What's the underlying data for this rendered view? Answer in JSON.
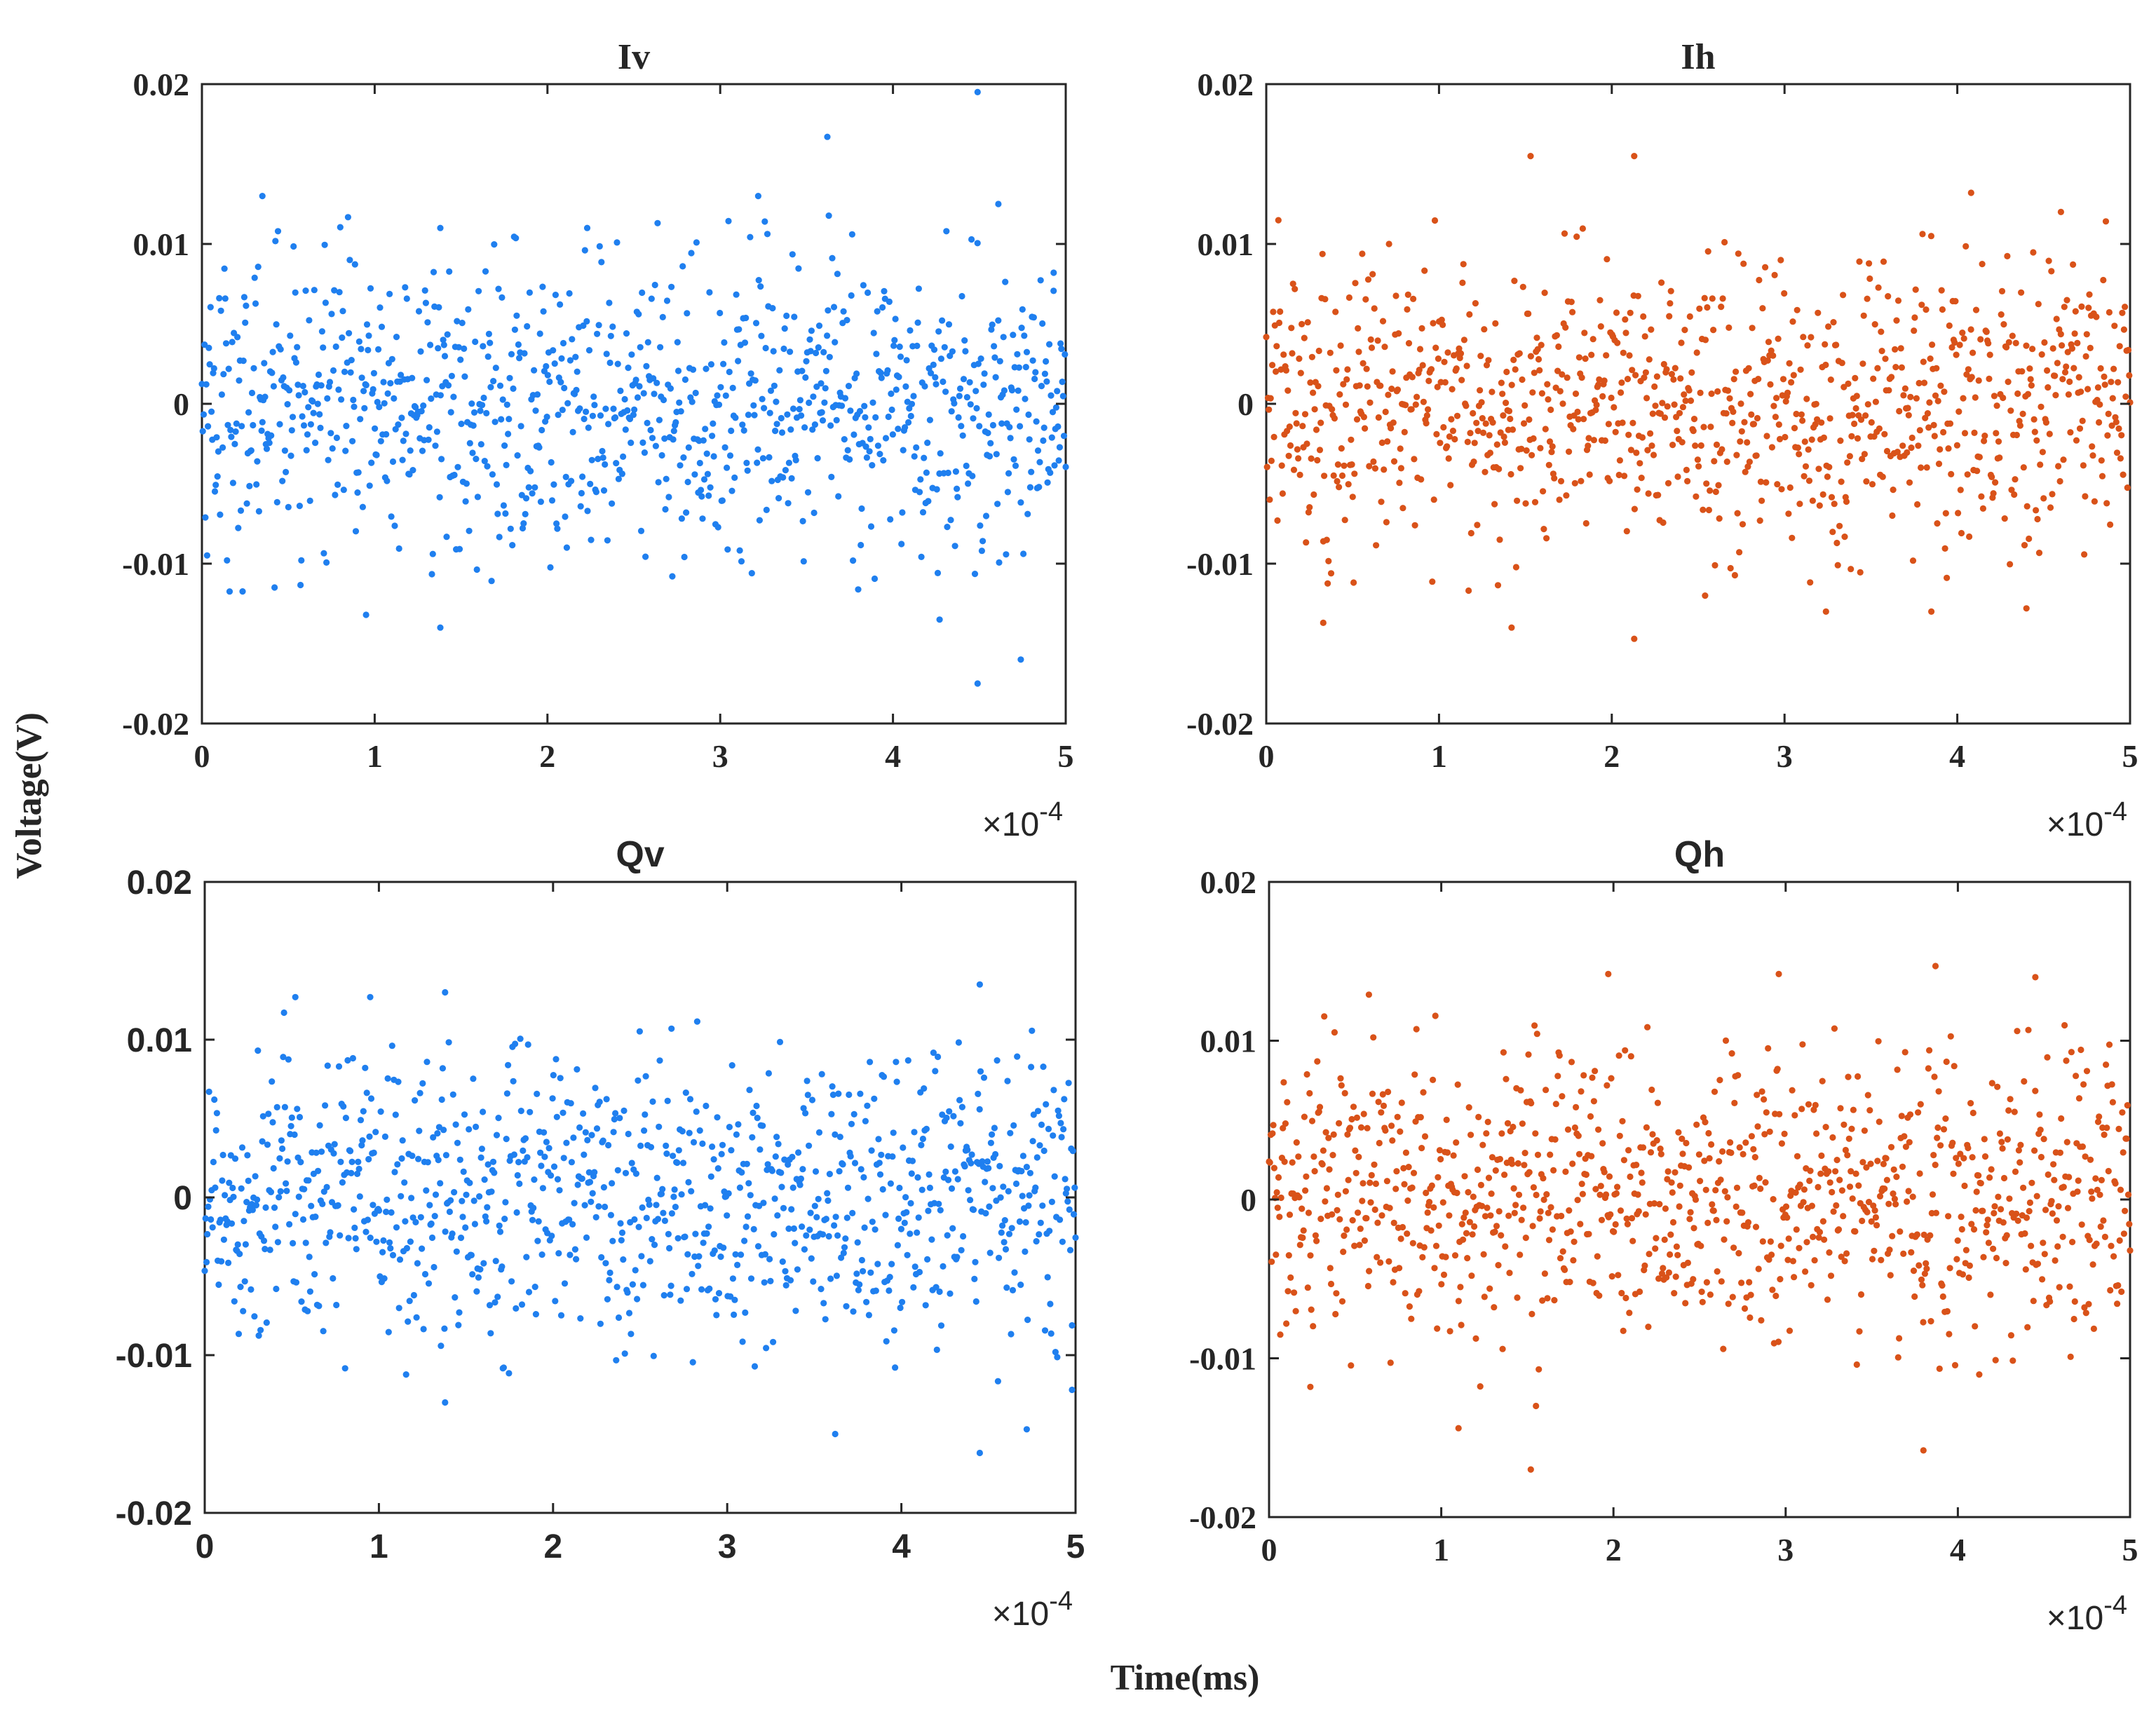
{
  "figure": {
    "ylabel": "Voltage(V)",
    "xlabel": "Time(ms)"
  },
  "chart_data": [
    {
      "type": "scatter",
      "title": "Iv",
      "xlim": [
        0,
        0.0005
      ],
      "ylim": [
        -0.02,
        0.02
      ],
      "x_exponent_label": "×10",
      "x_exponent": "-4",
      "xticks": [
        "0",
        "1",
        "2",
        "3",
        "4",
        "5"
      ],
      "yticks": [
        "0.02",
        "0.01",
        "0",
        "-0.01",
        "-0.02"
      ],
      "color": "#1f7fef",
      "grid": false,
      "points": 1000,
      "series": [
        {
          "x": [
            0.0,
            2e-05,
            4e-05,
            6e-05,
            8e-05,
            0.0001,
            0.00012,
            0.00014,
            0.00016,
            0.00018,
            0.0002,
            0.00022,
            0.00024,
            0.00026,
            0.00028,
            0.0003,
            0.00032,
            0.00034,
            0.00036,
            0.00038,
            0.0004,
            0.00042,
            0.00044,
            0.00046,
            0.00048,
            0.0005
          ],
          "y": [
            0.001,
            -0.003,
            0.004,
            -0.002,
            0.005,
            0.0,
            -0.004,
            0.003,
            -0.001,
            0.006,
            -0.002,
            0.001,
            -0.005,
            0.003,
            0.0,
            -0.003,
            0.002,
            -0.001,
            0.004,
            -0.002,
            0.001,
            -0.004,
            0.003,
            0.0,
            -0.002,
            0.001
          ],
          "outliers": [
            [
              3.5e-05,
              0.013
            ],
            [
              0.000138,
              0.011
            ],
            [
              0.000138,
              -0.014
            ],
            [
              0.000223,
              0.011
            ],
            [
              0.000322,
              0.013
            ],
            [
              0.000362,
              0.0167
            ],
            [
              0.000449,
              0.0195
            ],
            [
              0.000449,
              -0.0175
            ],
            [
              0.000474,
              -0.016
            ],
            [
              9.5e-05,
              -0.0132
            ],
            [
              0.000427,
              -0.0135
            ],
            [
              0.000461,
              0.0125
            ],
            [
              0.000493,
              0.0082
            ]
          ]
        }
      ]
    },
    {
      "type": "scatter",
      "title": "Ih",
      "xlim": [
        0,
        0.0005
      ],
      "ylim": [
        -0.02,
        0.02
      ],
      "x_exponent_label": "×10",
      "x_exponent": "-4",
      "xticks": [
        "0",
        "1",
        "2",
        "3",
        "4",
        "5"
      ],
      "yticks": [
        "0.02",
        "0.01",
        "0",
        "-0.01",
        "-0.02"
      ],
      "color": "#d95219",
      "grid": false,
      "points": 1000,
      "series": [
        {
          "x": [
            0.0,
            2e-05,
            4e-05,
            6e-05,
            8e-05,
            0.0001,
            0.00012,
            0.00014,
            0.00016,
            0.00018,
            0.0002,
            0.00022,
            0.00024,
            0.00026,
            0.00028,
            0.0003,
            0.00032,
            0.00034,
            0.00036,
            0.00038,
            0.0004,
            0.00042,
            0.00044,
            0.00046,
            0.00048,
            0.0005
          ],
          "y": [
            -0.001,
            0.002,
            -0.003,
            0.004,
            0.0,
            0.003,
            -0.002,
            0.001,
            -0.004,
            0.002,
            0.0,
            -0.001,
            0.003,
            -0.003,
            0.001,
            0.002,
            -0.002,
            0.0,
            0.003,
            -0.001,
            0.002,
            -0.003,
            0.001,
            0.0,
            -0.002,
            0.003
          ],
          "outliers": [
            [
              0.000153,
              0.0155
            ],
            [
              0.000213,
              0.0155
            ],
            [
              0.000213,
              -0.0147
            ],
            [
              3.3e-05,
              -0.0137
            ],
            [
              0.000142,
              -0.014
            ],
            [
              0.000254,
              -0.012
            ],
            [
              0.000408,
              0.0132
            ],
            [
              0.00046,
              0.012
            ],
            [
              0.000385,
              -0.013
            ],
            [
              0.00044,
              -0.0128
            ],
            [
              0.000324,
              -0.013
            ]
          ]
        }
      ]
    },
    {
      "type": "scatter",
      "title": "Qv",
      "xlim": [
        0,
        0.0005
      ],
      "ylim": [
        -0.02,
        0.02
      ],
      "x_exponent_label": "×10",
      "x_exponent": "-4",
      "xticks": [
        "0",
        "1",
        "2",
        "3",
        "4",
        "5"
      ],
      "yticks": [
        "0.02",
        "0.01",
        "0",
        "-0.01",
        "-0.02"
      ],
      "color": "#1f7fef",
      "grid": false,
      "points": 1000,
      "series": [
        {
          "x": [
            0.0,
            2e-05,
            4e-05,
            6e-05,
            8e-05,
            0.0001,
            0.00012,
            0.00014,
            0.00016,
            0.00018,
            0.0002,
            0.00022,
            0.00024,
            0.00026,
            0.00028,
            0.0003,
            0.00032,
            0.00034,
            0.00036,
            0.00038,
            0.0004,
            0.00042,
            0.00044,
            0.00046,
            0.00048,
            0.0005
          ],
          "y": [
            0.002,
            -0.002,
            0.003,
            -0.001,
            0.004,
            0.0,
            -0.003,
            0.002,
            -0.002,
            0.005,
            0.0,
            0.001,
            -0.004,
            0.003,
            -0.001,
            0.002,
            -0.002,
            0.001,
            0.003,
            -0.003,
            0.002,
            0.0,
            0.004,
            -0.001,
            0.001,
            -0.002
          ],
          "outliers": [
            [
              0.000138,
              0.013
            ],
            [
              0.000138,
              -0.013
            ],
            [
              0.000362,
              -0.015
            ],
            [
              0.000445,
              0.0135
            ],
            [
              0.000445,
              -0.0162
            ],
            [
              0.000472,
              -0.0147
            ],
            [
              0.000498,
              -0.0122
            ],
            [
              5.2e-05,
              0.0127
            ],
            [
              9.5e-05,
              0.0127
            ],
            [
              0.000268,
              0.0107
            ]
          ]
        }
      ]
    },
    {
      "type": "scatter",
      "title": "Qh",
      "xlim": [
        0,
        0.0005
      ],
      "ylim": [
        -0.02,
        0.02
      ],
      "x_exponent_label": "×10",
      "x_exponent": "-4",
      "xticks": [
        "0",
        "1",
        "2",
        "3",
        "4",
        "5"
      ],
      "yticks": [
        "0.02",
        "0.01",
        "0",
        "-0.01",
        "-0.02"
      ],
      "color": "#d95219",
      "grid": false,
      "points": 1000,
      "series": [
        {
          "x": [
            0.0,
            2e-05,
            4e-05,
            6e-05,
            8e-05,
            0.0001,
            0.00012,
            0.00014,
            0.00016,
            0.00018,
            0.0002,
            0.00022,
            0.00024,
            0.00026,
            0.00028,
            0.0003,
            0.00032,
            0.00034,
            0.00036,
            0.00038,
            0.0004,
            0.00042,
            0.00044,
            0.00046,
            0.00048,
            0.0005
          ],
          "y": [
            0.0,
            -0.003,
            0.002,
            -0.002,
            0.003,
            0.001,
            -0.004,
            0.002,
            0.0,
            0.003,
            -0.001,
            0.002,
            -0.003,
            0.001,
            0.004,
            -0.002,
            0.0,
            0.003,
            -0.001,
            0.002,
            -0.003,
            0.001,
            0.0,
            0.002,
            -0.002,
            0.001
          ],
          "outliers": [
            [
              0.000152,
              -0.017
            ],
            [
              0.000155,
              -0.013
            ],
            [
              0.00011,
              -0.0144
            ],
            [
              0.00038,
              -0.0158
            ],
            [
              0.000387,
              0.0147
            ],
            [
              0.000197,
              0.0142
            ],
            [
              0.000296,
              0.0142
            ],
            [
              0.000445,
              0.014
            ],
            [
              2.4e-05,
              -0.0118
            ],
            [
              5.8e-05,
              0.0129
            ]
          ]
        }
      ]
    }
  ]
}
